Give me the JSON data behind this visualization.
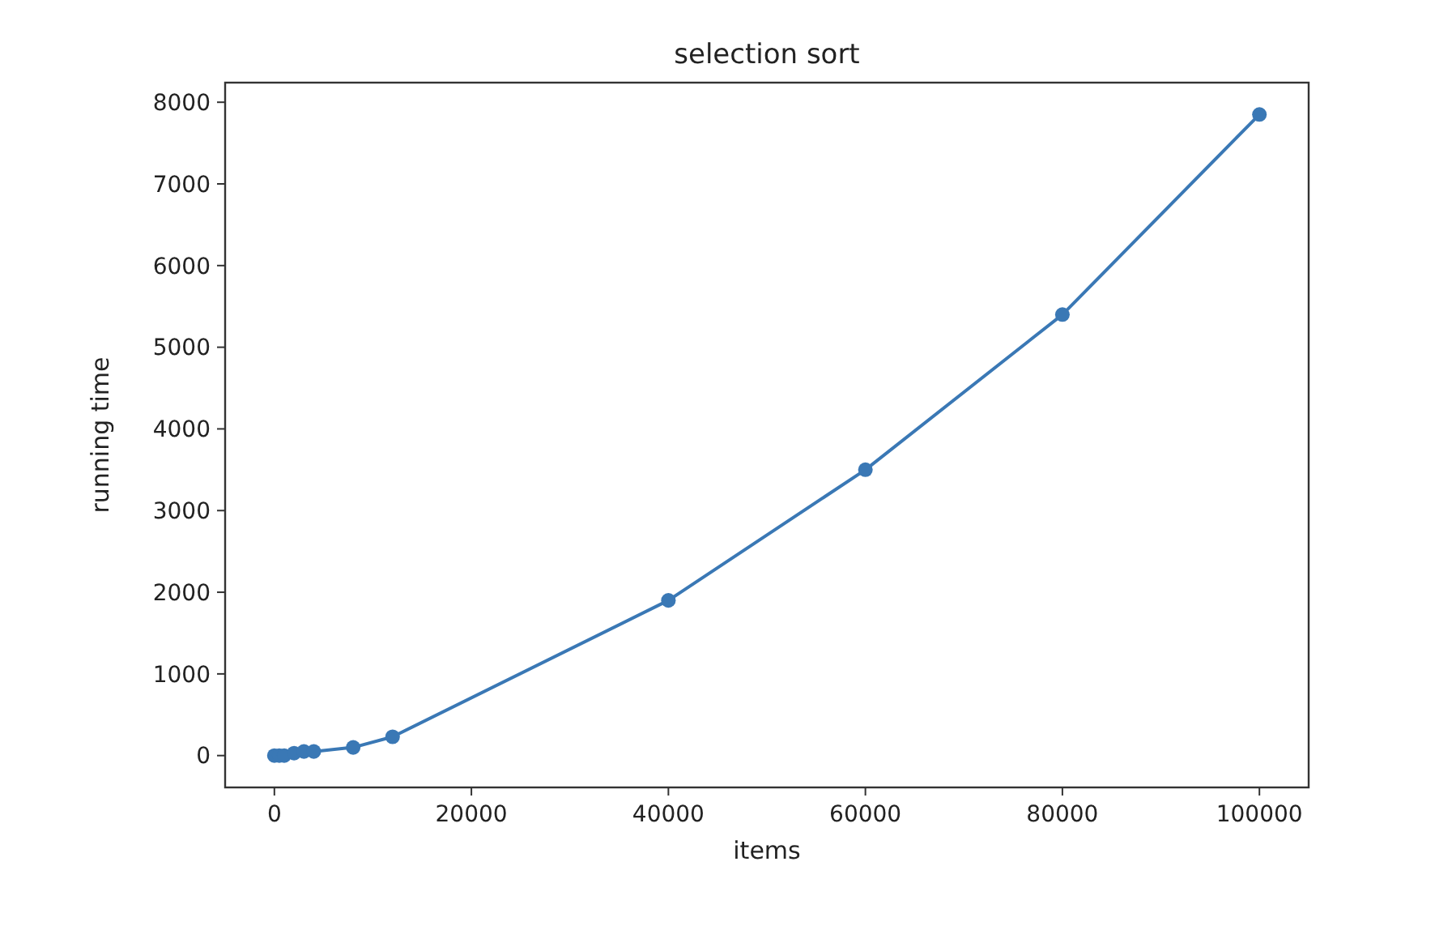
{
  "chart_data": {
    "type": "line",
    "title": "selection sort",
    "xlabel": "items",
    "ylabel": "running time",
    "x": [
      0,
      500,
      1000,
      2000,
      3000,
      4000,
      8000,
      12000,
      40000,
      60000,
      80000,
      100000
    ],
    "series": [
      {
        "color": "#3a78b5",
        "values": [
          0,
          0,
          0,
          30,
          50,
          50,
          100,
          230,
          1900,
          3500,
          5400,
          7850
        ]
      }
    ],
    "marker": "circle",
    "xlim": [
      -5000,
      105000
    ],
    "ylim": [
      -390,
      8240
    ],
    "xticks": [
      0,
      20000,
      40000,
      60000,
      80000,
      100000
    ],
    "yticks": [
      0,
      1000,
      2000,
      3000,
      4000,
      5000,
      6000,
      7000,
      8000
    ]
  }
}
